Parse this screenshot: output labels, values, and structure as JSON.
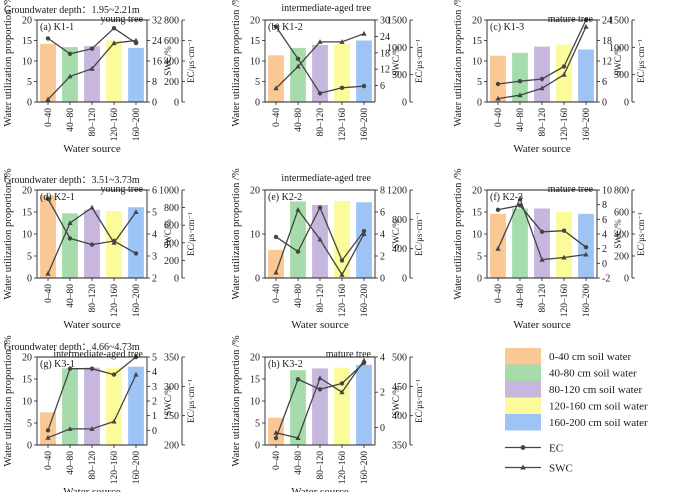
{
  "figure": {
    "categories": [
      "0–40",
      "40–80",
      "80–120",
      "120–160",
      "160–200"
    ],
    "series_colors": [
      "#f9c894",
      "#a6dcac",
      "#c7b6dd",
      "#fbfb9a",
      "#9ec4f5"
    ],
    "legend": {
      "soil_layers": [
        "0-40 cm soil water",
        "40-80 cm soil water",
        "80-120 cm soil water",
        "120-160 cm soil water",
        "160-200 cm soil water"
      ],
      "ec_label": "EC",
      "swc_label": "SWC"
    }
  },
  "chart_data": [
    {
      "type": "bar",
      "panel": "(a)  K1-1",
      "tag": "young tree",
      "groundwater": "Groundwater depth：1.95~2.21m",
      "ylabel": "Water utilization proportion /%",
      "xlabel": "Water source",
      "ec_label": "EC/μs·cm⁻¹",
      "swc_label": "SWC/%",
      "ylim": [
        0,
        20
      ],
      "yticks": [
        0,
        5,
        10,
        15,
        20
      ],
      "values": [
        14.2,
        13.4,
        13.6,
        15.0,
        13.2
      ],
      "ec_lim": [
        0,
        800
      ],
      "ec_ticks": [
        0,
        200,
        400,
        600,
        800
      ],
      "ec": [
        620,
        470,
        520,
        720,
        575
      ],
      "swc_lim": [
        0,
        32
      ],
      "swc_ticks": [
        0,
        8,
        16,
        24,
        32
      ],
      "swc": [
        1,
        10,
        13,
        23,
        24
      ]
    },
    {
      "type": "bar",
      "panel": "(b)  K1-2",
      "tag": "intermediate-aged tree",
      "ylabel": "Water utilization proportion /%",
      "xlabel": "",
      "ec_label": "EC/μs·cm⁻¹",
      "swc_label": "SWC/%",
      "ylim": [
        0,
        20
      ],
      "yticks": [
        0,
        5,
        10,
        15,
        20
      ],
      "values": [
        11.4,
        13.2,
        13.9,
        14.1,
        15.0
      ],
      "ec_lim": [
        0,
        1500
      ],
      "ec_ticks": [
        0,
        500,
        1000,
        1500
      ],
      "ec": [
        1380,
        790,
        160,
        260,
        290
      ],
      "swc_lim": [
        0,
        30
      ],
      "swc_ticks": [
        6,
        12,
        18,
        24,
        30
      ],
      "swc": [
        5,
        13,
        22,
        22,
        25
      ]
    },
    {
      "type": "bar",
      "panel": "(c)  K1-3",
      "tag": "mature tree",
      "ylabel": "Water utilization proportion /%",
      "xlabel": "Water source",
      "ec_label": "EC/μs·cm⁻¹",
      "swc_label": "SWC/%",
      "ylim": [
        0,
        20
      ],
      "yticks": [
        0,
        5,
        10,
        15,
        20
      ],
      "values": [
        11.3,
        12.0,
        13.5,
        14.0,
        12.8
      ],
      "ec_lim": [
        0,
        1500
      ],
      "ec_ticks": [
        0,
        500,
        1000,
        1500
      ],
      "ec": [
        330,
        380,
        420,
        650,
        1500
      ],
      "swc_lim": [
        0,
        24
      ],
      "swc_ticks": [
        0,
        6,
        12,
        18,
        24
      ],
      "swc": [
        1,
        2,
        4,
        8,
        22
      ]
    },
    {
      "type": "bar",
      "panel": "(d)  K2-1",
      "tag": "young tree",
      "groundwater": "Groundwater depth：3.51~3.73m",
      "ylabel": "Water utilization proportion /%",
      "xlabel": "Water source",
      "ec_label": "EC/μs·cm⁻¹",
      "swc_label": "SWC/%",
      "ylim": [
        0,
        20
      ],
      "yticks": [
        0,
        5,
        10,
        15,
        20
      ],
      "values": [
        18.8,
        14.7,
        15.5,
        15.2,
        16.1
      ],
      "ec_lim": [
        0,
        1000
      ],
      "ec_ticks": [
        0,
        200,
        400,
        600,
        800,
        1000
      ],
      "ec": [
        900,
        450,
        380,
        420,
        280
      ],
      "swc_lim": [
        2,
        6
      ],
      "swc_ticks": [
        2,
        3,
        4,
        5,
        6
      ],
      "swc": [
        2.2,
        4.5,
        5.2,
        3.6,
        5.0
      ]
    },
    {
      "type": "bar",
      "panel": "(e)  K2-2",
      "tag": "intermediate-aged tree",
      "ylabel": "Water utilization proportion /%",
      "xlabel": "Water source",
      "ec_label": "EC/μs·cm⁻¹",
      "swc_label": "SWC/%",
      "ylim": [
        0,
        20
      ],
      "yticks": [
        0,
        10,
        20
      ],
      "values": [
        6.4,
        17.4,
        16.6,
        17.5,
        17.2
      ],
      "ec_lim": [
        0,
        1200
      ],
      "ec_ticks": [
        0,
        400,
        800,
        1200
      ],
      "ec": [
        560,
        360,
        960,
        240,
        640
      ],
      "swc_lim": [
        0,
        8
      ],
      "swc_ticks": [
        0,
        2,
        4,
        6,
        8
      ],
      "swc": [
        0.5,
        6.2,
        3.5,
        0.3,
        4.0
      ]
    },
    {
      "type": "bar",
      "panel": "(f)  K2-3",
      "tag": "mature tree",
      "ylabel": "Water utilization proportion /%",
      "xlabel": "Water source",
      "ec_label": "EC/μs·cm⁻¹",
      "swc_label": "SWC/%",
      "ylim": [
        0,
        20
      ],
      "yticks": [
        0,
        5,
        10,
        15,
        20
      ],
      "values": [
        14.6,
        15.8,
        15.8,
        15.0,
        14.6
      ],
      "ec_lim": [
        0,
        800
      ],
      "ec_ticks": [
        0,
        200,
        400,
        600,
        800
      ],
      "ec": [
        620,
        660,
        420,
        430,
        280
      ],
      "swc_lim": [
        -2,
        10
      ],
      "swc_ticks": [
        -2,
        0,
        2,
        4,
        6,
        8,
        10
      ],
      "swc": [
        2.0,
        8.8,
        0.5,
        0.8,
        1.2
      ]
    },
    {
      "type": "bar",
      "panel": "(g)  K3-1",
      "tag": "intermediate-aged tree",
      "groundwater": "Groundwater depth：4.66~4.73m",
      "ylabel": "Water utilization proportion /%",
      "xlabel": "Water source",
      "ec_label": "EC/μs·cm⁻¹",
      "swc_label": "SWC/%",
      "ylim": [
        0,
        20
      ],
      "yticks": [
        0,
        5,
        10,
        15,
        20
      ],
      "values": [
        7.4,
        17.4,
        17.6,
        17.6,
        17.8
      ],
      "ec_lim": [
        200,
        350
      ],
      "ec_ticks": [
        200,
        250,
        300,
        350
      ],
      "ec": [
        225,
        330,
        330,
        320,
        350
      ],
      "swc_lim": [
        -1,
        5
      ],
      "swc_ticks": [
        0,
        1,
        2,
        3,
        4,
        5
      ],
      "swc": [
        -0.5,
        0.1,
        0.1,
        0.6,
        3.8
      ]
    },
    {
      "type": "bar",
      "panel": "(h)  K3-2",
      "tag": "mature tree",
      "ylabel": "Water utilization proportion /%",
      "xlabel": "Water source",
      "ec_label": "EC/μs·cm⁻¹",
      "swc_label": "SWC/%",
      "ylim": [
        0,
        20
      ],
      "yticks": [
        0,
        5,
        10,
        15,
        20
      ],
      "values": [
        6.2,
        17.0,
        17.4,
        17.6,
        18.2
      ],
      "ec_lim": [
        350,
        500
      ],
      "ec_ticks": [
        350,
        400,
        450,
        500
      ],
      "ec": [
        362,
        462,
        445,
        455,
        490
      ],
      "swc_lim": [
        -1,
        4
      ],
      "swc_ticks": [
        0,
        2,
        4
      ],
      "swc": [
        -0.3,
        -0.6,
        2.8,
        2.0,
        3.8
      ]
    }
  ]
}
